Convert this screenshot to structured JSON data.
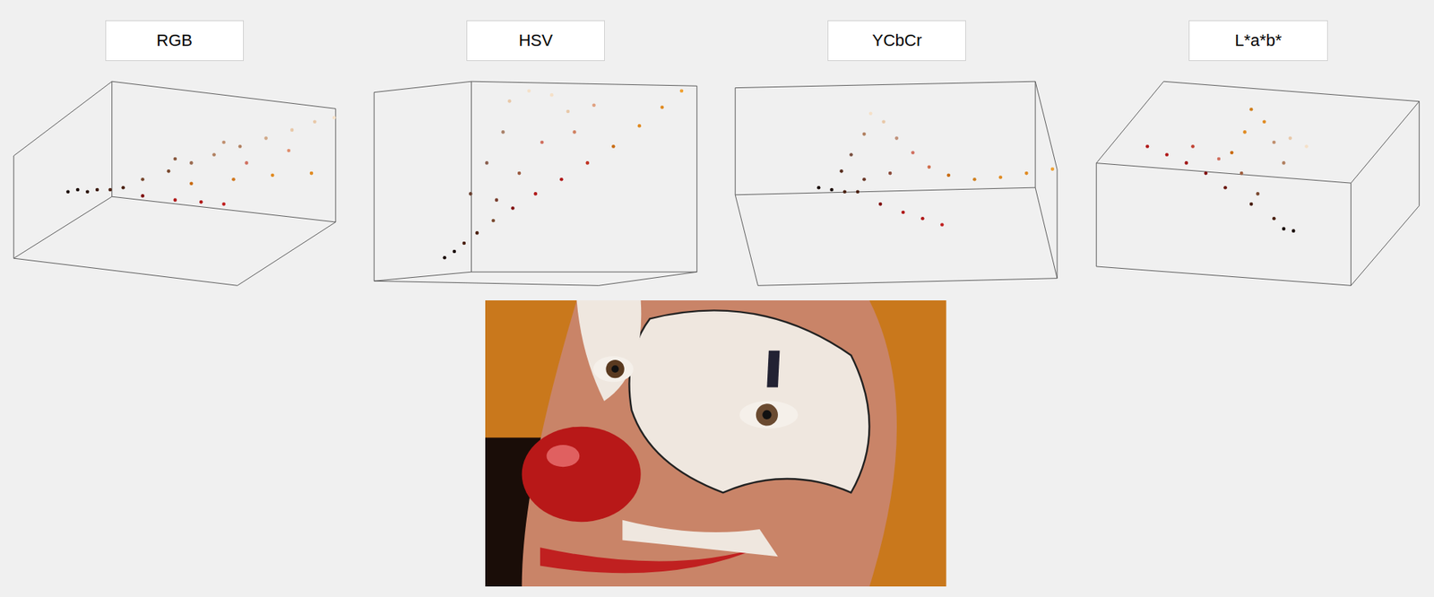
{
  "chart_data": [
    {
      "type": "scatter",
      "title": "RGB",
      "xlim": [
        0,
        1
      ],
      "ylim": [
        0,
        1
      ],
      "tick_labels": false,
      "x": [
        0.17,
        0.2,
        0.23,
        0.26,
        0.3,
        0.34,
        0.4,
        0.48,
        0.55,
        0.62,
        0.7,
        0.78,
        0.86,
        0.93,
        0.99,
        0.5,
        0.65,
        0.55,
        0.68,
        0.8,
        0.92,
        0.4,
        0.5,
        0.58,
        0.65,
        0.72,
        0.85
      ],
      "y": [
        0.46,
        0.47,
        0.46,
        0.47,
        0.47,
        0.48,
        0.52,
        0.56,
        0.6,
        0.64,
        0.68,
        0.72,
        0.76,
        0.8,
        0.82,
        0.62,
        0.7,
        0.5,
        0.52,
        0.54,
        0.55,
        0.44,
        0.42,
        0.41,
        0.4,
        0.6,
        0.66
      ],
      "colors": [
        "#1a0a05",
        "#1a0a05",
        "#2a1208",
        "#3a180c",
        "#4a2010",
        "#4a2010",
        "#7a4a30",
        "#7a4a30",
        "#9a6a50",
        "#b08060",
        "#b08060",
        "#d0a888",
        "#e8c8a8",
        "#e8c8a8",
        "#f5e0c8",
        "#8a5a40",
        "#c09070",
        "#c86a10",
        "#d07820",
        "#e08a20",
        "#e08a20",
        "#801010",
        "#b01818",
        "#b01818",
        "#c02020",
        "#d07060",
        "#e09070"
      ]
    },
    {
      "type": "scatter",
      "title": "HSV",
      "xlim": [
        0,
        1
      ],
      "ylim": [
        0,
        1
      ],
      "tick_labels": false,
      "x": [
        0.22,
        0.25,
        0.28,
        0.32,
        0.37,
        0.43,
        0.5,
        0.58,
        0.66,
        0.74,
        0.82,
        0.89,
        0.95,
        0.3,
        0.35,
        0.4,
        0.42,
        0.48,
        0.55,
        0.6,
        0.52,
        0.62,
        0.68,
        0.45,
        0.38
      ],
      "y": [
        0.14,
        0.17,
        0.21,
        0.26,
        0.32,
        0.38,
        0.45,
        0.52,
        0.6,
        0.68,
        0.78,
        0.87,
        0.95,
        0.45,
        0.6,
        0.75,
        0.9,
        0.95,
        0.93,
        0.85,
        0.7,
        0.75,
        0.88,
        0.55,
        0.42
      ],
      "colors": [
        "#1a0a05",
        "#1a0a05",
        "#4a2010",
        "#4a2010",
        "#7a4a30",
        "#801010",
        "#b01818",
        "#b01818",
        "#c03020",
        "#c86a10",
        "#e08a20",
        "#e08a20",
        "#f0a030",
        "#6a4030",
        "#8a6050",
        "#a88068",
        "#e8c8a8",
        "#f5e0c8",
        "#f5e0c8",
        "#e8c8a8",
        "#d07060",
        "#d08060",
        "#e0a080",
        "#9a5a40",
        "#7a4030"
      ]
    },
    {
      "type": "scatter",
      "title": "YCbCr",
      "xlim": [
        0,
        1
      ],
      "ylim": [
        0,
        1
      ],
      "tick_labels": false,
      "x": [
        0.26,
        0.3,
        0.34,
        0.38,
        0.33,
        0.36,
        0.4,
        0.42,
        0.46,
        0.5,
        0.55,
        0.6,
        0.66,
        0.74,
        0.82,
        0.9,
        0.98,
        0.45,
        0.52,
        0.58,
        0.64,
        0.48,
        0.4
      ],
      "y": [
        0.48,
        0.47,
        0.46,
        0.46,
        0.56,
        0.64,
        0.74,
        0.84,
        0.8,
        0.72,
        0.65,
        0.58,
        0.54,
        0.52,
        0.53,
        0.55,
        0.57,
        0.4,
        0.36,
        0.33,
        0.3,
        0.55,
        0.52
      ],
      "colors": [
        "#1a0a05",
        "#1a0a05",
        "#4a2010",
        "#4a2010",
        "#5a3020",
        "#7a5040",
        "#b08060",
        "#f5e0c8",
        "#e8c8a8",
        "#c09078",
        "#d07060",
        "#d07050",
        "#c86a10",
        "#d08020",
        "#e08a20",
        "#e08a20",
        "#f0a030",
        "#801010",
        "#b01818",
        "#b01818",
        "#c02020",
        "#8a4a3a",
        "#6a3828"
      ]
    },
    {
      "type": "scatter",
      "title": "L*a*b*",
      "xlim": [
        0,
        1
      ],
      "ylim": [
        0,
        1
      ],
      "tick_labels": false,
      "x": [
        0.16,
        0.22,
        0.28,
        0.34,
        0.4,
        0.48,
        0.55,
        0.61,
        0.58,
        0.5,
        0.45,
        0.42,
        0.46,
        0.48,
        0.52,
        0.55,
        0.6,
        0.65,
        0.58,
        0.38,
        0.3
      ],
      "y": [
        0.68,
        0.64,
        0.6,
        0.55,
        0.48,
        0.4,
        0.33,
        0.27,
        0.28,
        0.45,
        0.55,
        0.65,
        0.75,
        0.86,
        0.8,
        0.7,
        0.72,
        0.68,
        0.6,
        0.62,
        0.68
      ],
      "colors": [
        "#b01818",
        "#b01818",
        "#a01818",
        "#801010",
        "#6a1810",
        "#4a2010",
        "#4a2010",
        "#1a0a05",
        "#1a0a05",
        "#7a4a30",
        "#a06040",
        "#c86a10",
        "#e08a20",
        "#d08020",
        "#e08a20",
        "#c09070",
        "#e8c8a8",
        "#f5e0c8",
        "#b08060",
        "#d07060",
        "#c04030"
      ]
    }
  ]
}
